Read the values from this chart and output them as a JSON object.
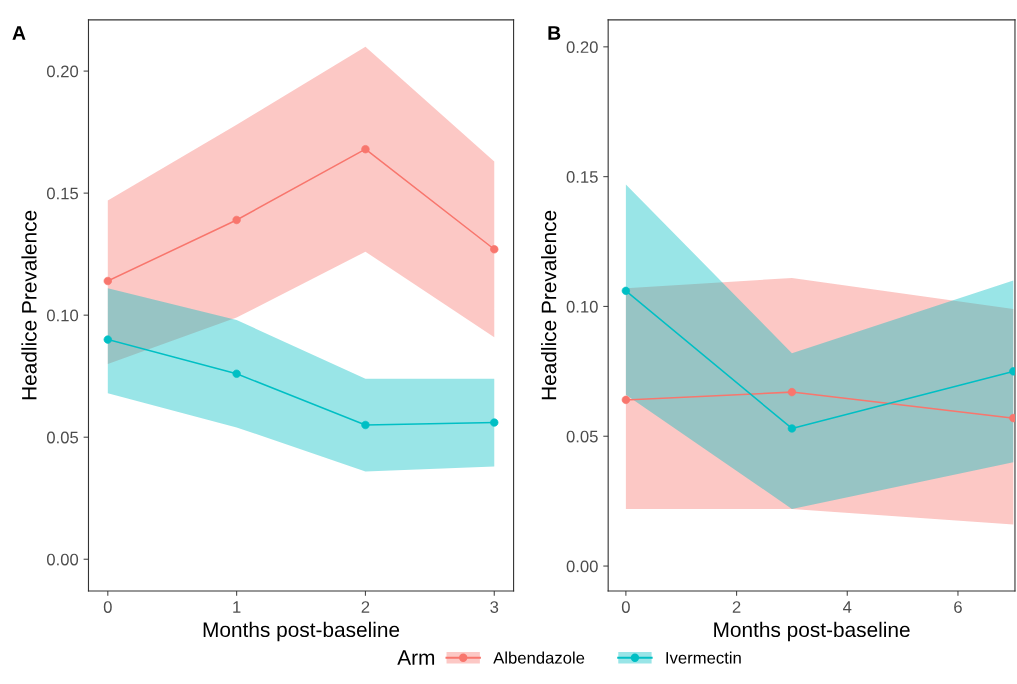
{
  "chart_data": [
    {
      "type": "line",
      "title": "A",
      "xlabel": "Months post-baseline",
      "ylabel": "Headlice Prevalence",
      "legend": "bottom",
      "marker": "circle",
      "line_style": "solid",
      "grid": false,
      "x": [
        0,
        1,
        2,
        3
      ],
      "xlim": [
        -0.15,
        3.15
      ],
      "xticks": [
        0,
        1,
        2,
        3
      ],
      "ylim": [
        -0.013,
        0.221
      ],
      "yticks": [
        {
          "value": 0,
          "label": "0.00"
        },
        {
          "value": 0.05,
          "label": "0.05"
        },
        {
          "value": 0.1,
          "label": "0.10"
        },
        {
          "value": 0.15,
          "label": "0.15"
        },
        {
          "value": 0.2,
          "label": "0.20"
        }
      ],
      "series": [
        {
          "name": "Albendazole",
          "color": "#f8766d",
          "values": [
            0.114,
            0.139,
            0.168,
            0.127
          ],
          "lower": [
            0.08,
            0.099,
            0.126,
            0.091
          ],
          "upper": [
            0.147,
            0.178,
            0.21,
            0.163
          ]
        },
        {
          "name": "Ivermectin",
          "color": "#00bfc4",
          "values": [
            0.09,
            0.076,
            0.055,
            0.056
          ],
          "lower": [
            0.068,
            0.054,
            0.036,
            0.038
          ],
          "upper": [
            0.111,
            0.098,
            0.074,
            0.074
          ]
        }
      ]
    },
    {
      "type": "line",
      "title": "B",
      "xlabel": "Months post-baseline",
      "ylabel": "Headlice Prevalence",
      "legend_title": "Arm",
      "legend": "bottom",
      "marker": "circle",
      "line_style": "solid",
      "grid": false,
      "x": [
        0,
        3,
        7
      ],
      "xlim": [
        -0.32,
        7.03
      ],
      "xticks": [
        0,
        2,
        4,
        6
      ],
      "ylim": [
        -0.0096,
        0.2104
      ],
      "yticks": [
        {
          "value": 0,
          "label": "0.00"
        },
        {
          "value": 0.05,
          "label": "0.05"
        },
        {
          "value": 0.1,
          "label": "0.10"
        },
        {
          "value": 0.15,
          "label": "0.15"
        },
        {
          "value": 0.2,
          "label": "0.20"
        }
      ],
      "series": [
        {
          "name": "Albendazole",
          "color": "#f8766d",
          "values": [
            0.064,
            0.067,
            0.057
          ],
          "lower": [
            0.022,
            0.022,
            0.016
          ],
          "upper": [
            0.107,
            0.111,
            0.099
          ]
        },
        {
          "name": "Ivermectin",
          "color": "#00bfc4",
          "values": [
            0.106,
            0.053,
            0.075
          ],
          "lower": [
            0.066,
            0.022,
            0.04
          ],
          "upper": [
            0.147,
            0.082,
            0.11
          ]
        }
      ]
    }
  ]
}
